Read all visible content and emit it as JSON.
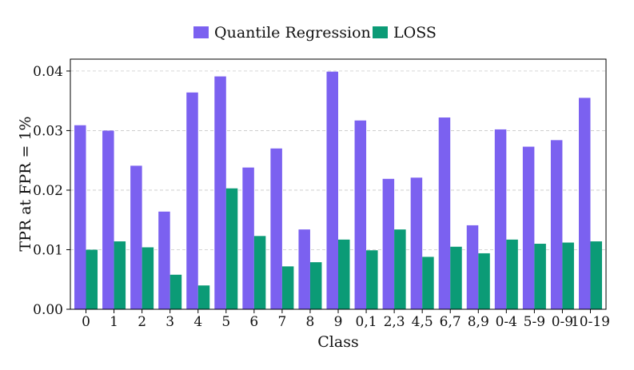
{
  "chart_data": {
    "type": "bar",
    "title": "",
    "xlabel": "Class",
    "ylabel": "TPR at FPR = 1%",
    "categories": [
      "0",
      "1",
      "2",
      "3",
      "4",
      "5",
      "6",
      "7",
      "8",
      "9",
      "0,1",
      "2,3",
      "4,5",
      "6,7",
      "8,9",
      "0-4",
      "5-9",
      "0-9",
      "10-19"
    ],
    "series": [
      {
        "name": "Quantile Regression",
        "color": "#7b61f0",
        "values": [
          0.0309,
          0.03,
          0.0241,
          0.0164,
          0.0364,
          0.0391,
          0.0238,
          0.027,
          0.0134,
          0.0399,
          0.0317,
          0.0219,
          0.0221,
          0.0322,
          0.0141,
          0.0302,
          0.0273,
          0.0284,
          0.0355
        ]
      },
      {
        "name": "LOSS",
        "color": "#0b9b76",
        "values": [
          0.01,
          0.0114,
          0.0104,
          0.0058,
          0.004,
          0.0203,
          0.0123,
          0.0072,
          0.0079,
          0.0117,
          0.0099,
          0.0134,
          0.0088,
          0.0105,
          0.0094,
          0.0117,
          0.011,
          0.0112,
          0.0114
        ]
      }
    ],
    "ylim": [
      0,
      0.042
    ],
    "yticks": [
      "0.00",
      "0.01",
      "0.02",
      "0.03",
      "0.04"
    ],
    "grid": true,
    "legend_position": "top-center"
  }
}
